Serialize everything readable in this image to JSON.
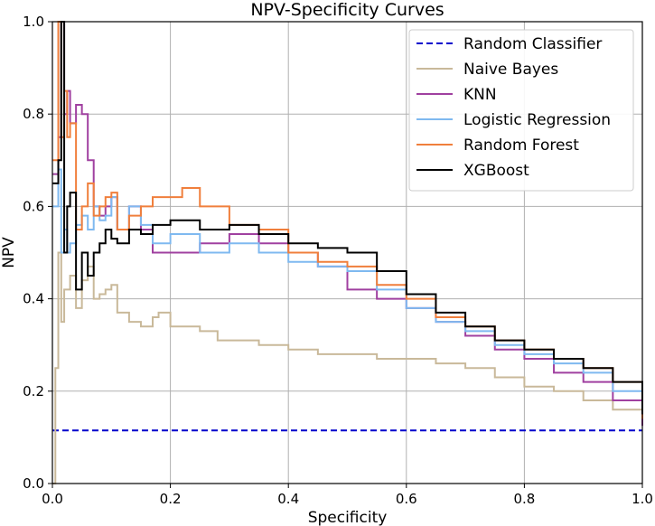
{
  "chart_data": {
    "type": "line",
    "title": "NPV-Specificity Curves",
    "xlabel": "Specificity",
    "ylabel": "NPV",
    "xlim": [
      0.0,
      1.0
    ],
    "ylim": [
      0.0,
      1.0
    ],
    "grid": true,
    "legend_position": "top-right",
    "x_ticks": [
      "0.0",
      "0.2",
      "0.4",
      "0.6",
      "0.8",
      "1.0"
    ],
    "y_ticks": [
      "0.0",
      "0.2",
      "0.4",
      "0.6",
      "0.8",
      "1.0"
    ],
    "series": [
      {
        "name": "Random Classifier",
        "color": "#0000cc",
        "style": "dashed",
        "x": [
          0.0,
          1.0
        ],
        "y": [
          0.115,
          0.115
        ]
      },
      {
        "name": "Naive Bayes",
        "color": "#c9b99a",
        "style": "solid",
        "x": [
          0.0,
          0.005,
          0.01,
          0.015,
          0.02,
          0.03,
          0.04,
          0.05,
          0.06,
          0.07,
          0.08,
          0.09,
          0.1,
          0.11,
          0.13,
          0.15,
          0.17,
          0.18,
          0.2,
          0.25,
          0.28,
          0.3,
          0.35,
          0.4,
          0.45,
          0.5,
          0.55,
          0.6,
          0.65,
          0.7,
          0.75,
          0.8,
          0.85,
          0.9,
          0.95,
          1.0
        ],
        "y": [
          0.0,
          0.25,
          0.5,
          0.35,
          0.42,
          0.45,
          0.38,
          0.44,
          0.47,
          0.4,
          0.41,
          0.42,
          0.43,
          0.37,
          0.35,
          0.34,
          0.36,
          0.37,
          0.34,
          0.33,
          0.31,
          0.31,
          0.3,
          0.29,
          0.28,
          0.28,
          0.27,
          0.27,
          0.26,
          0.25,
          0.23,
          0.21,
          0.2,
          0.18,
          0.16,
          0.135
        ]
      },
      {
        "name": "KNN",
        "color": "#a040a0",
        "style": "solid",
        "x": [
          0.0,
          0.01,
          0.015,
          0.02,
          0.025,
          0.03,
          0.04,
          0.05,
          0.06,
          0.07,
          0.08,
          0.09,
          0.1,
          0.11,
          0.13,
          0.15,
          0.17,
          0.2,
          0.25,
          0.3,
          0.35,
          0.4,
          0.45,
          0.5,
          0.55,
          0.6,
          0.65,
          0.7,
          0.75,
          0.8,
          0.85,
          0.9,
          0.95,
          1.0
        ],
        "y": [
          0.67,
          0.75,
          1.0,
          0.8,
          0.85,
          0.78,
          0.82,
          0.8,
          0.7,
          0.6,
          0.58,
          0.6,
          0.62,
          0.55,
          0.6,
          0.55,
          0.5,
          0.5,
          0.52,
          0.54,
          0.52,
          0.5,
          0.47,
          0.42,
          0.4,
          0.38,
          0.35,
          0.32,
          0.29,
          0.27,
          0.24,
          0.22,
          0.18,
          0.125
        ]
      },
      {
        "name": "Logistic Regression",
        "color": "#7fb9f0",
        "style": "solid",
        "x": [
          0.0,
          0.01,
          0.015,
          0.02,
          0.025,
          0.03,
          0.04,
          0.05,
          0.06,
          0.07,
          0.08,
          0.09,
          0.1,
          0.11,
          0.13,
          0.15,
          0.17,
          0.2,
          0.25,
          0.3,
          0.35,
          0.4,
          0.45,
          0.5,
          0.55,
          0.6,
          0.65,
          0.7,
          0.75,
          0.8,
          0.85,
          0.9,
          0.95,
          1.0
        ],
        "y": [
          0.6,
          0.68,
          0.5,
          0.55,
          0.5,
          0.52,
          0.56,
          0.58,
          0.55,
          0.6,
          0.57,
          0.58,
          0.62,
          0.55,
          0.6,
          0.56,
          0.52,
          0.54,
          0.5,
          0.52,
          0.5,
          0.48,
          0.47,
          0.46,
          0.42,
          0.38,
          0.35,
          0.33,
          0.3,
          0.28,
          0.26,
          0.24,
          0.2,
          0.14
        ]
      },
      {
        "name": "Random Forest",
        "color": "#f07f3c",
        "style": "solid",
        "x": [
          0.0,
          0.01,
          0.015,
          0.02,
          0.025,
          0.03,
          0.04,
          0.05,
          0.06,
          0.07,
          0.08,
          0.09,
          0.1,
          0.11,
          0.13,
          0.15,
          0.17,
          0.2,
          0.22,
          0.25,
          0.3,
          0.35,
          0.4,
          0.45,
          0.5,
          0.55,
          0.6,
          0.65,
          0.7,
          0.75,
          0.8,
          0.85,
          0.9,
          0.95,
          1.0
        ],
        "y": [
          0.7,
          1.0,
          0.75,
          0.85,
          0.75,
          0.78,
          0.55,
          0.6,
          0.65,
          0.58,
          0.6,
          0.62,
          0.63,
          0.55,
          0.58,
          0.6,
          0.62,
          0.62,
          0.64,
          0.6,
          0.56,
          0.55,
          0.5,
          0.48,
          0.47,
          0.43,
          0.4,
          0.36,
          0.34,
          0.31,
          0.29,
          0.27,
          0.25,
          0.22,
          0.14
        ]
      },
      {
        "name": "XGBoost",
        "color": "#000000",
        "style": "solid",
        "x": [
          0.0,
          0.01,
          0.015,
          0.02,
          0.025,
          0.03,
          0.04,
          0.05,
          0.06,
          0.07,
          0.08,
          0.09,
          0.1,
          0.11,
          0.13,
          0.15,
          0.17,
          0.2,
          0.25,
          0.3,
          0.35,
          0.4,
          0.45,
          0.5,
          0.55,
          0.6,
          0.65,
          0.7,
          0.75,
          0.8,
          0.85,
          0.9,
          0.95,
          1.0
        ],
        "y": [
          0.65,
          0.7,
          1.0,
          0.5,
          0.6,
          0.63,
          0.42,
          0.5,
          0.45,
          0.5,
          0.52,
          0.55,
          0.53,
          0.52,
          0.55,
          0.54,
          0.56,
          0.57,
          0.55,
          0.56,
          0.54,
          0.52,
          0.51,
          0.5,
          0.46,
          0.41,
          0.37,
          0.34,
          0.31,
          0.29,
          0.27,
          0.25,
          0.22,
          0.15
        ]
      }
    ]
  }
}
